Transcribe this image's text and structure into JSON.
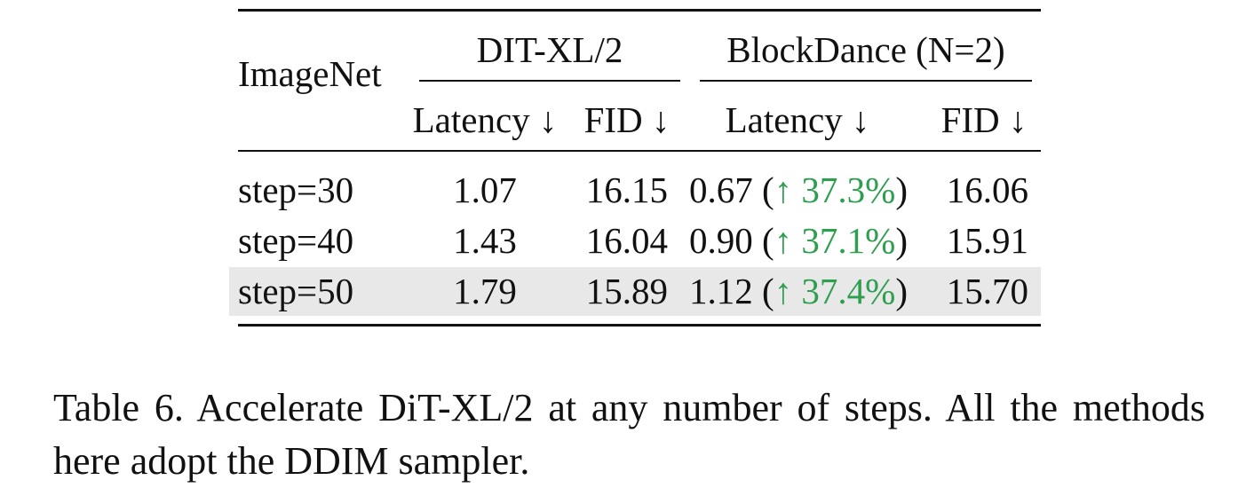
{
  "table": {
    "corner_label": "ImageNet",
    "groups": [
      {
        "label": "DIT-XL/2"
      },
      {
        "label": "BlockDance (N=2)"
      }
    ],
    "subheaders": [
      "Latency ↓",
      "FID ↓",
      "Latency ↓",
      "FID ↓"
    ],
    "rows": [
      {
        "label": "step=30",
        "dit_latency": "1.07",
        "dit_fid": "16.15",
        "bd_latency": "0.67",
        "bd_speedup": "↑ 37.3%",
        "bd_fid": "16.06"
      },
      {
        "label": "step=40",
        "dit_latency": "1.43",
        "dit_fid": "16.04",
        "bd_latency": "0.90",
        "bd_speedup": "↑ 37.1%",
        "bd_fid": "15.91"
      },
      {
        "label": "step=50",
        "dit_latency": "1.79",
        "dit_fid": "15.89",
        "bd_latency": "1.12",
        "bd_speedup": "↑ 37.4%",
        "bd_fid": "15.70",
        "highlighted": true
      }
    ],
    "highlight_color": "#e8e8e8",
    "speedup_color": "#2e9e4f"
  },
  "caption": {
    "text": "Table 6.  Accelerate DiT-XL/2 at any number of steps.  All the methods here adopt the DDIM sampler."
  }
}
